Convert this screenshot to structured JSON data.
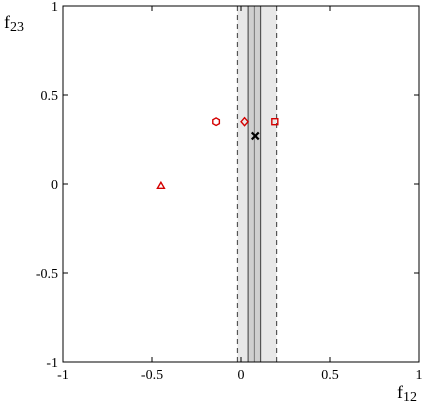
{
  "chart_data": {
    "type": "scatter",
    "title": "",
    "xlabel": "f12",
    "ylabel": "f23",
    "xlim": [
      -1,
      1
    ],
    "ylim": [
      -1,
      1
    ],
    "x_ticks": [
      -1,
      -0.5,
      0,
      0.5,
      1
    ],
    "y_ticks": [
      -1,
      -0.5,
      0,
      0.5,
      1
    ],
    "x_tick_labels": [
      "-1",
      "-0.5",
      "0",
      "0.5",
      "1"
    ],
    "y_tick_labels": [
      "-1",
      "-0.5",
      "0",
      "0.5",
      "1"
    ],
    "grid": false,
    "bands": [
      {
        "name": "outer",
        "x_range": [
          -0.02,
          0.2
        ],
        "fill": "#e8e8e8",
        "edge": "dashed"
      },
      {
        "name": "inner",
        "x_range": [
          0.04,
          0.11
        ],
        "fill": "#cfcfcf",
        "edge": "solid"
      }
    ],
    "center_line_x": 0.075,
    "best_fit": {
      "x": 0.08,
      "y": 0.27,
      "marker": "x",
      "color": "#000000"
    },
    "points": [
      {
        "x": -0.45,
        "y": -0.01,
        "marker": "triangle",
        "color": "#d40000"
      },
      {
        "x": -0.14,
        "y": 0.35,
        "marker": "hexagon",
        "color": "#d40000"
      },
      {
        "x": 0.02,
        "y": 0.35,
        "marker": "diamond",
        "color": "#d40000"
      },
      {
        "x": 0.19,
        "y": 0.35,
        "marker": "square",
        "color": "#d40000"
      }
    ]
  }
}
